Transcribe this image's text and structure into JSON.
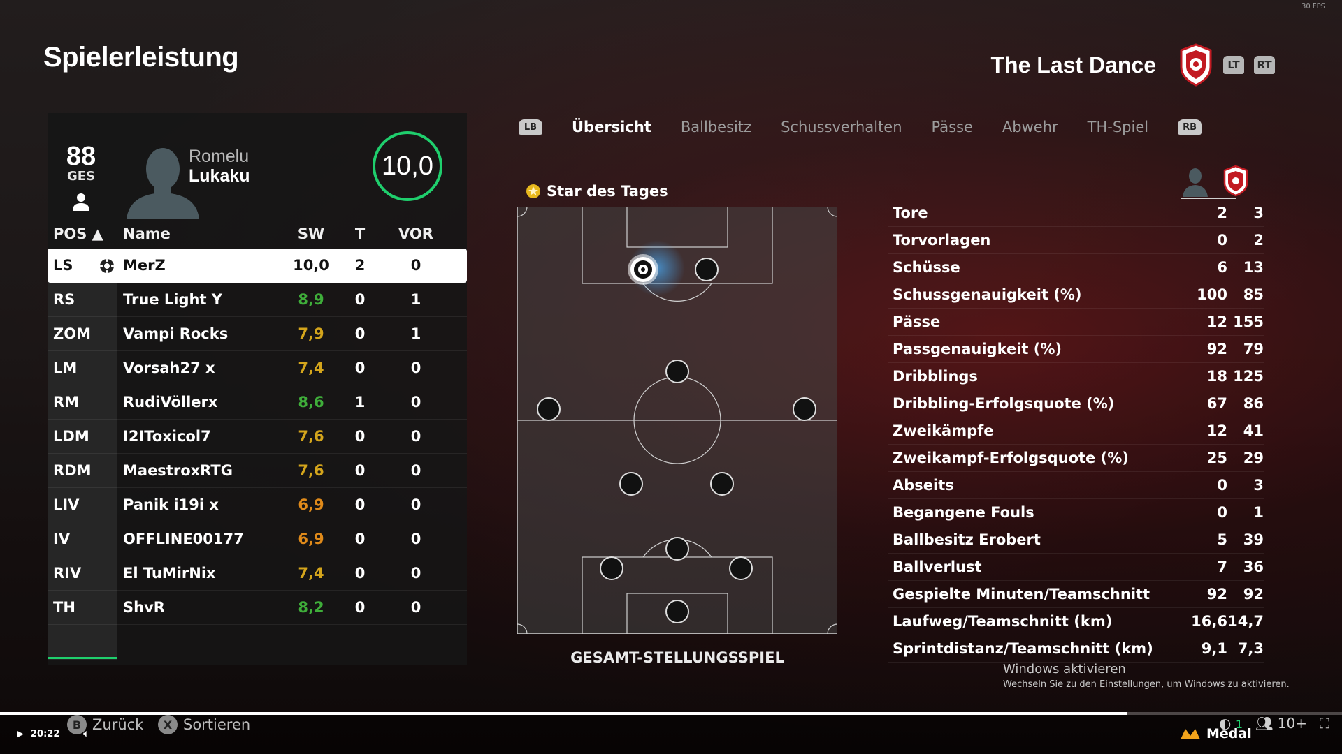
{
  "fps": "30 FPS",
  "page_title": "Spielerleistung",
  "team": {
    "name": "The Last Dance",
    "btn_lt": "LT",
    "btn_rt": "RT"
  },
  "player_card": {
    "overall": "88",
    "overall_label": "GES",
    "first_name": "Romelu",
    "last_name": "Lukaku",
    "match_rating": "10,0",
    "rating_color": "#1fcf6d"
  },
  "table": {
    "headers": {
      "pos": "POS ▲",
      "name": "Name",
      "sw": "SW",
      "t": "T",
      "vor": "VOR"
    },
    "rows": [
      {
        "pos": "LS",
        "name": "MerZ",
        "sw": "10,0",
        "sw_color": "#111111",
        "t": "2",
        "vor": "0",
        "selected": true
      },
      {
        "pos": "RS",
        "name": "True Light Y",
        "sw": "8,9",
        "sw_color": "#3fae3a",
        "t": "0",
        "vor": "1"
      },
      {
        "pos": "ZOM",
        "name": "Vampi Rocks",
        "sw": "7,9",
        "sw_color": "#d4a51c",
        "t": "0",
        "vor": "1"
      },
      {
        "pos": "LM",
        "name": "Vorsah27 x",
        "sw": "7,4",
        "sw_color": "#d4a51c",
        "t": "0",
        "vor": "0"
      },
      {
        "pos": "RM",
        "name": "RudiVöllerx",
        "sw": "8,6",
        "sw_color": "#3fae3a",
        "t": "1",
        "vor": "0"
      },
      {
        "pos": "LDM",
        "name": "I2IToxicol7",
        "sw": "7,6",
        "sw_color": "#d4a51c",
        "t": "0",
        "vor": "0"
      },
      {
        "pos": "RDM",
        "name": "MaestroxRTG",
        "sw": "7,6",
        "sw_color": "#d4a51c",
        "t": "0",
        "vor": "0"
      },
      {
        "pos": "LIV",
        "name": "Panik i19i x",
        "sw": "6,9",
        "sw_color": "#e08a1a",
        "t": "0",
        "vor": "0"
      },
      {
        "pos": "IV",
        "name": "OFFLINE00177",
        "sw": "6,9",
        "sw_color": "#e08a1a",
        "t": "0",
        "vor": "0"
      },
      {
        "pos": "RIV",
        "name": "El TuMirNix",
        "sw": "7,4",
        "sw_color": "#d4a51c",
        "t": "0",
        "vor": "0"
      },
      {
        "pos": "TH",
        "name": "ShvR",
        "sw": "8,2",
        "sw_color": "#3fae3a",
        "t": "0",
        "vor": "0"
      }
    ]
  },
  "tabs": {
    "lb": "LB",
    "rb": "RB",
    "items": [
      "Übersicht",
      "Ballbesitz",
      "Schussverhalten",
      "Pässe",
      "Abwehr",
      "TH-Spiel"
    ],
    "active": 0
  },
  "star_of_day": "Star des Tages",
  "pitch_caption": "GESAMT-STELLUNGSSPIEL",
  "stats": [
    {
      "label": "Tore",
      "player": "2",
      "team": "3"
    },
    {
      "label": "Torvorlagen",
      "player": "0",
      "team": "2"
    },
    {
      "label": "Schüsse",
      "player": "6",
      "team": "13"
    },
    {
      "label": "Schussgenauigkeit (%)",
      "player": "100",
      "team": "85"
    },
    {
      "label": "Pässe",
      "player": "12",
      "team": "155"
    },
    {
      "label": "Passgenauigkeit (%)",
      "player": "92",
      "team": "79"
    },
    {
      "label": "Dribblings",
      "player": "18",
      "team": "125"
    },
    {
      "label": "Dribbling-Erfolgsquote (%)",
      "player": "67",
      "team": "86"
    },
    {
      "label": "Zweikämpfe",
      "player": "12",
      "team": "41"
    },
    {
      "label": "Zweikampf-Erfolgsquote (%)",
      "player": "25",
      "team": "29"
    },
    {
      "label": "Abseits",
      "player": "0",
      "team": "3"
    },
    {
      "label": "Begangene Fouls",
      "player": "0",
      "team": "1"
    },
    {
      "label": "Ballbesitz Erobert",
      "player": "5",
      "team": "39"
    },
    {
      "label": "Ballverlust",
      "player": "7",
      "team": "36"
    },
    {
      "label": "Gespielte Minuten/Teamschnitt",
      "player": "92",
      "team": "92"
    },
    {
      "label": "Laufweg/Teamschnitt (km)",
      "player": "16,6",
      "team": "14,7"
    },
    {
      "label": "Sprintdistanz/Teamschnitt (km)",
      "player": "9,1",
      "team": "7,3"
    }
  ],
  "windows_activation": {
    "title": "Windows aktivieren",
    "subtitle": "Wechseln Sie zu den Einstellungen, um Windows zu aktivieren."
  },
  "footer": {
    "back_btn": "B",
    "back_label": "Zurück",
    "sort_btn": "X",
    "sort_label": "Sortieren",
    "time": "20:22",
    "progress_fraction": 0.84,
    "medal_label": "Medal",
    "notif_count": "1",
    "viewers": "10+"
  }
}
